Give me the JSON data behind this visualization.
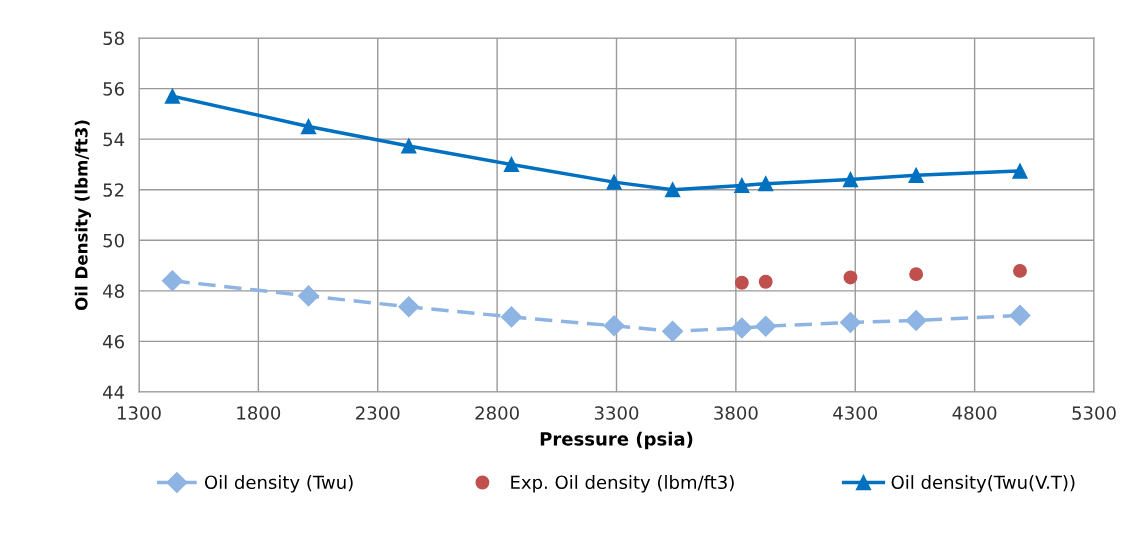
{
  "chart_data": {
    "type": "line",
    "xlabel": "Pressure (psia)",
    "ylabel": "Oil Density (lbm/ft3)",
    "xlim": [
      1300,
      5300
    ],
    "xticks": [
      1300,
      1800,
      2300,
      2800,
      3300,
      3800,
      4300,
      4800,
      5300
    ],
    "ylim": [
      44,
      58
    ],
    "yticks": [
      44,
      46,
      48,
      50,
      52,
      54,
      56,
      58
    ],
    "grid": true,
    "legend": "bottom",
    "series": [
      {
        "name": "Oil density (Twu)",
        "type": "line",
        "color": "#8db4e2",
        "marker": "diamond",
        "line_style": "dashed",
        "x": [
          1440,
          2010,
          2430,
          2860,
          3290,
          3535,
          3825,
          3925,
          4280,
          4555,
          4990
        ],
        "values": [
          48.4,
          47.8,
          47.37,
          46.97,
          46.62,
          46.4,
          46.53,
          46.6,
          46.75,
          46.83,
          47.03
        ]
      },
      {
        "name": "Exp. Oil density (lbm/ft3)",
        "type": "scatter",
        "color": "#c0504d",
        "marker": "circle",
        "x": [
          3825,
          3925,
          4280,
          4555,
          4990
        ],
        "values": [
          48.32,
          48.36,
          48.53,
          48.66,
          48.79
        ]
      },
      {
        "name": "Oil density(Twu(V.T))",
        "type": "line",
        "color": "#0070c0",
        "marker": "triangle",
        "line_style": "solid",
        "x": [
          1440,
          2010,
          2430,
          2860,
          3290,
          3535,
          3825,
          3925,
          4280,
          4555,
          4990
        ],
        "values": [
          55.7,
          54.5,
          53.73,
          53.0,
          52.3,
          52.0,
          52.17,
          52.24,
          52.4,
          52.57,
          52.74
        ]
      }
    ]
  }
}
